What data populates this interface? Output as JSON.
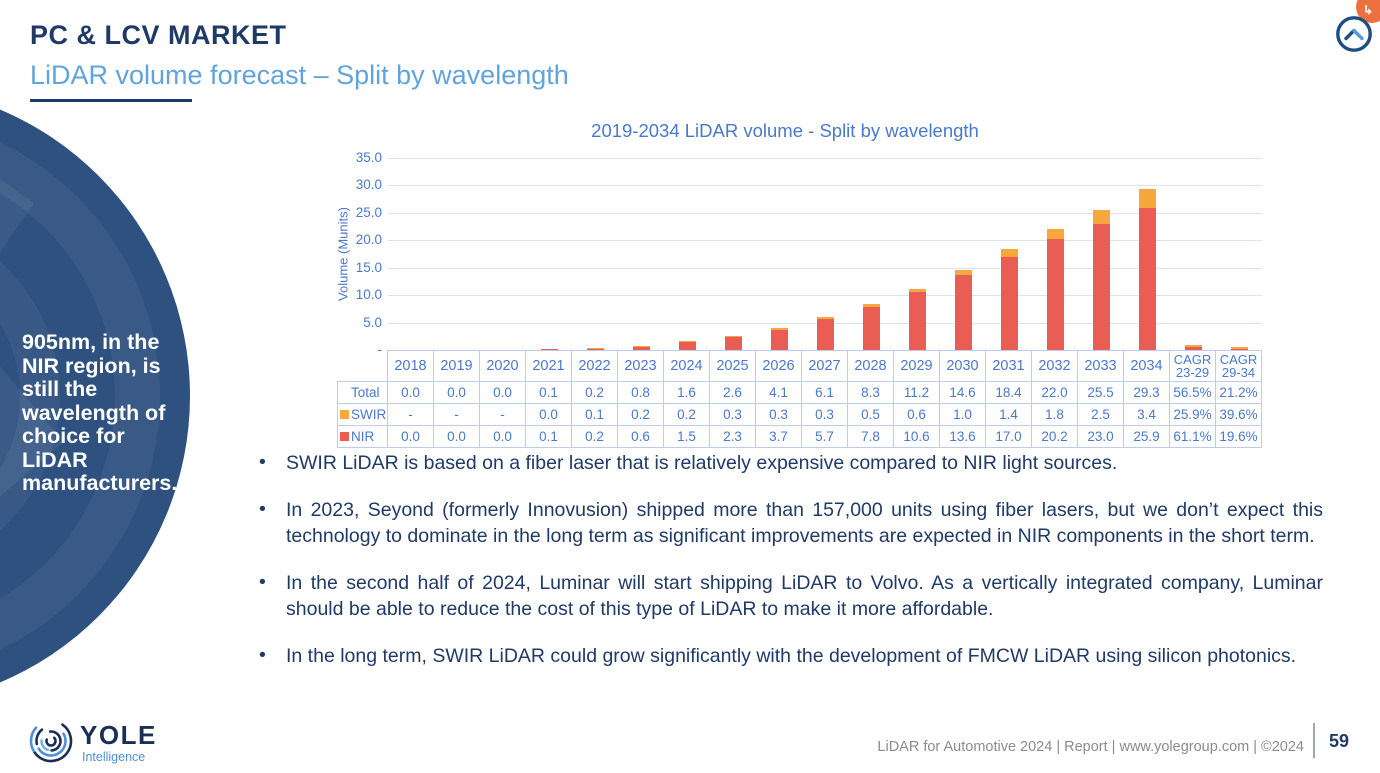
{
  "header": {
    "title": "PC & LCV MARKET",
    "subtitle": "LiDAR volume forecast – Split by wavelength"
  },
  "sidebar": {
    "note": "905nm, in the NIR region, is still the wavelength of choice for LiDAR manufacturers."
  },
  "chart_data": {
    "type": "bar",
    "stacked": true,
    "title": "2019-2034 LiDAR volume - Split by wavelength",
    "ylabel": "Volume (Munits)",
    "ylim": [
      0,
      35
    ],
    "ytick_labels": [
      "35.0",
      "30.0",
      "25.0",
      "20.0",
      "15.0",
      "10.0",
      "5.0",
      "-"
    ],
    "grid": true,
    "categories": [
      "2018",
      "2019",
      "2020",
      "2021",
      "2022",
      "2023",
      "2024",
      "2025",
      "2026",
      "2027",
      "2028",
      "2029",
      "2030",
      "2031",
      "2032",
      "2033",
      "2034",
      "CAGR\n23-29",
      "CAGR\n29-34"
    ],
    "series": [
      {
        "name": "NIR",
        "color": "#EA5D55",
        "values": [
          0.0,
          0.0,
          0.0,
          0.1,
          0.2,
          0.6,
          1.5,
          2.3,
          3.7,
          5.7,
          7.8,
          10.6,
          13.6,
          17.0,
          20.2,
          23.0,
          25.9,
          0.611,
          0.196
        ]
      },
      {
        "name": "SWIR",
        "color": "#F6A73E",
        "values": [
          null,
          null,
          null,
          0.0,
          0.1,
          0.2,
          0.2,
          0.3,
          0.3,
          0.3,
          0.5,
          0.6,
          1.0,
          1.4,
          1.8,
          2.5,
          3.4,
          0.259,
          0.396
        ]
      }
    ],
    "table": {
      "rows": [
        {
          "label": "Total",
          "swatch": null,
          "cells": [
            "0.0",
            "0.0",
            "0.0",
            "0.1",
            "0.2",
            "0.8",
            "1.6",
            "2.6",
            "4.1",
            "6.1",
            "8.3",
            "11.2",
            "14.6",
            "18.4",
            "22.0",
            "25.5",
            "29.3",
            "56.5%",
            "21.2%"
          ]
        },
        {
          "label": "SWIR",
          "swatch": "#F6A73E",
          "cells": [
            "-",
            "-",
            "-",
            "0.0",
            "0.1",
            "0.2",
            "0.2",
            "0.3",
            "0.3",
            "0.3",
            "0.5",
            "0.6",
            "1.0",
            "1.4",
            "1.8",
            "2.5",
            "3.4",
            "25.9%",
            "39.6%"
          ]
        },
        {
          "label": "NIR",
          "swatch": "#EA5D55",
          "cells": [
            "0.0",
            "0.0",
            "0.0",
            "0.1",
            "0.2",
            "0.6",
            "1.5",
            "2.3",
            "3.7",
            "5.7",
            "7.8",
            "10.6",
            "13.6",
            "17.0",
            "20.2",
            "23.0",
            "25.9",
            "61.1%",
            "19.6%"
          ]
        }
      ]
    }
  },
  "bullets": [
    "SWIR LiDAR is based on a fiber laser that is relatively expensive compared to NIR light sources.",
    "In 2023, Seyond (formerly Innovusion) shipped more than 157,000 units using fiber lasers, but we don’t expect this technology to dominate in the long term as significant improvements are expected in NIR components in the short term.",
    "In the second half of 2024, Luminar will start shipping LiDAR to Volvo. As a vertically integrated company, Luminar should be able to reduce the cost of this type of LiDAR to make it more affordable.",
    "In the long term, SWIR LiDAR could grow significantly with the development of FMCW LiDAR using silicon photonics."
  ],
  "footer": {
    "logo": "YOLE",
    "logo_sub": "Intelligence",
    "info": "LiDAR for Automotive 2024 | Report | www.yolegroup.com | ©2024",
    "page": "59"
  },
  "colors": {
    "navy": "#1F3A66",
    "accent_blue": "#4979CB",
    "light_blue": "#61A3DD",
    "nir_red": "#EA5D55",
    "swir_orange": "#F6A73E",
    "circle_blue": "#2E5180",
    "badge_orange": "#ED7140"
  }
}
